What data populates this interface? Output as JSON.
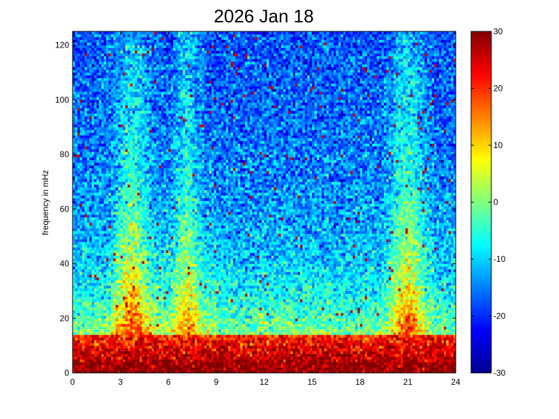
{
  "figure": {
    "background": "#ffffff"
  },
  "chart_data": {
    "type": "heatmap",
    "title": "2026 Jan 18",
    "xlabel": "",
    "ylabel": "frequency in mHz",
    "xlim": [
      0,
      24
    ],
    "ylim": [
      0,
      125
    ],
    "x_ticks": [
      "0",
      "3",
      "6",
      "9",
      "12",
      "15",
      "18",
      "21",
      "24"
    ],
    "y_ticks": [
      "0",
      "20",
      "40",
      "60",
      "80",
      "100",
      "120"
    ],
    "colorbar": {
      "colormap": "jet",
      "clim": [
        -30,
        30
      ],
      "ticks": [
        "30",
        "20",
        "10",
        "0",
        "-10",
        "-20",
        "-30"
      ]
    },
    "grid": {
      "x_bins": 160,
      "y_bins": 125,
      "x_bin_width_hours": 0.15,
      "y_bin_width_mhz": 1.0
    },
    "features": {
      "low_frequency_floor_db": 30,
      "broadband_events": [
        {
          "start_hour": 3.0,
          "end_hour": 4.4,
          "peak_db": 27
        },
        {
          "start_hour": 6.8,
          "end_hour": 7.6,
          "peak_db": 22
        },
        {
          "start_hour": 20.3,
          "end_hour": 21.7,
          "peak_db": 30
        }
      ],
      "background_high_freq_db": -18
    }
  }
}
